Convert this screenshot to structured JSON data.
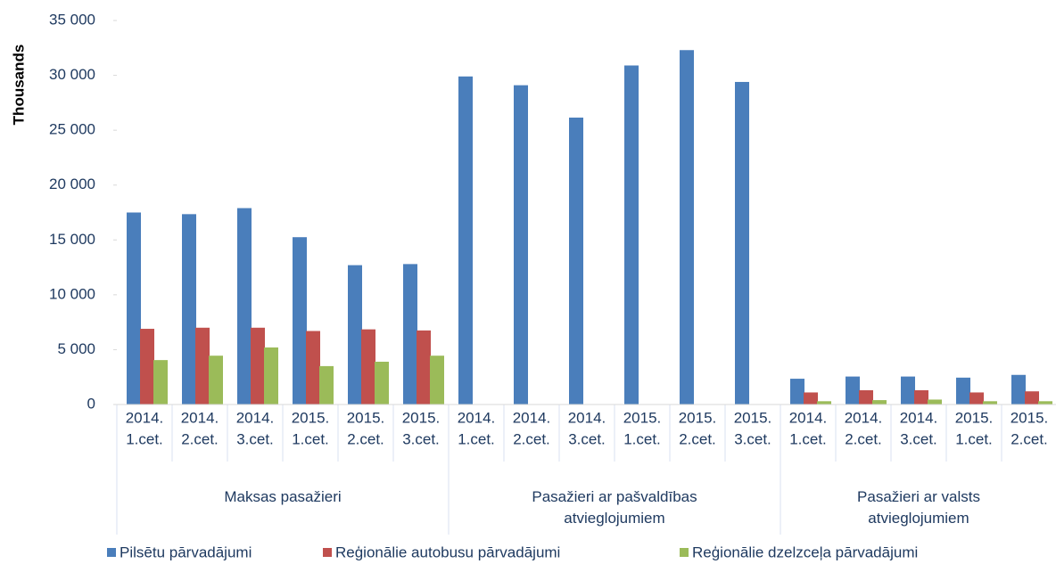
{
  "chart_data": {
    "type": "bar",
    "y_label": "Thousands",
    "groups": [
      {
        "name": "Maksas pasažieri",
        "categories": [
          [
            "2014.",
            "1.cet."
          ],
          [
            "2014.",
            "2.cet."
          ],
          [
            "2014.",
            "3.cet."
          ],
          [
            "2015.",
            "1.cet."
          ],
          [
            "2015.",
            "2.cet."
          ],
          [
            "2015.",
            "3.cet."
          ]
        ]
      },
      {
        "name": "Pasažieri ar pašvaldības atvieglojumiem",
        "categories": [
          [
            "2014.",
            "1.cet."
          ],
          [
            "2014.",
            "2.cet."
          ],
          [
            "2014.",
            "3.cet."
          ],
          [
            "2015.",
            "1.cet."
          ],
          [
            "2015.",
            "2.cet."
          ],
          [
            "2015.",
            "3.cet."
          ]
        ]
      },
      {
        "name": "Pasažieri ar valsts atvieglojumiem",
        "categories": [
          [
            "2014.",
            "1.cet."
          ],
          [
            "2014.",
            "2.cet."
          ],
          [
            "2014.",
            "3.cet."
          ],
          [
            "2015.",
            "1.cet."
          ],
          [
            "2015.",
            "2.cet."
          ]
        ]
      }
    ],
    "series": [
      {
        "name": "Pilsētu pārvadājumi",
        "color": "#4a7ebb",
        "values": [
          17500,
          17350,
          17900,
          15250,
          12700,
          12800,
          29900,
          29100,
          26150,
          30900,
          32300,
          29400,
          2350,
          2550,
          2550,
          2450,
          2700
        ]
      },
      {
        "name": "Reģionālie autobusu pārvadājumi",
        "color": "#c0504d",
        "values": [
          6900,
          7000,
          7000,
          6700,
          6850,
          6750,
          null,
          null,
          null,
          null,
          null,
          null,
          1100,
          1300,
          1300,
          1100,
          1200
        ]
      },
      {
        "name": "Reģionālie dzelzceļa pārvadājumi",
        "color": "#9bbb59",
        "values": [
          4050,
          4450,
          5200,
          3500,
          3900,
          4450,
          null,
          null,
          null,
          null,
          null,
          null,
          300,
          400,
          450,
          300,
          300
        ]
      }
    ],
    "ylim": [
      0,
      35000
    ],
    "yticks": [
      0,
      {
        "value": 5000,
        "label": "5 000"
      },
      {
        "value": 10000,
        "label": "10 000"
      },
      {
        "value": 15000,
        "label": "15 000"
      },
      {
        "value": 20000,
        "label": "20 000"
      },
      {
        "value": 25000,
        "label": "25 000"
      },
      {
        "value": 30000,
        "label": "30 000"
      },
      {
        "value": 35000,
        "label": "35 000"
      }
    ]
  }
}
